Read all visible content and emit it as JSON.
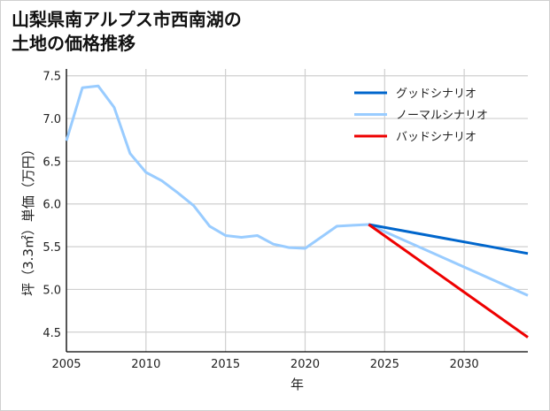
{
  "chart_data": {
    "type": "line",
    "title_lines": [
      "山梨県南アルプス市西南湖の",
      "土地の価格推移"
    ],
    "xlabel": "年",
    "ylabel": "坪（3.3㎡）単価（万円）",
    "xlim": [
      2005,
      2034
    ],
    "ylim": [
      4.27,
      7.58
    ],
    "xticks": [
      2005,
      2010,
      2015,
      2020,
      2025,
      2030
    ],
    "yticks": [
      4.5,
      5.0,
      5.5,
      6.0,
      6.5,
      7.0,
      7.5
    ],
    "ytick_labels": [
      "4.5",
      "5.0",
      "5.5",
      "6.0",
      "6.5",
      "7.0",
      "7.5"
    ],
    "grid": true,
    "legend_position": "top-right",
    "series": [
      {
        "name": "グッドシナリオ",
        "color": "#0066cc",
        "x": [
          2024,
          2034
        ],
        "y": [
          5.76,
          5.42
        ]
      },
      {
        "name": "ノーマルシナリオ",
        "color": "#99ccff",
        "x": [
          2005,
          2006,
          2007,
          2008,
          2009,
          2010,
          2011,
          2012,
          2013,
          2014,
          2015,
          2016,
          2017,
          2018,
          2019,
          2020,
          2021,
          2022,
          2023,
          2024,
          2034
        ],
        "y": [
          6.74,
          7.36,
          7.38,
          7.13,
          6.59,
          6.37,
          6.27,
          6.13,
          5.98,
          5.74,
          5.63,
          5.61,
          5.63,
          5.53,
          5.49,
          5.48,
          5.61,
          5.74,
          5.75,
          5.76,
          4.93
        ]
      },
      {
        "name": "バッドシナリオ",
        "color": "#ee0000",
        "x": [
          2024,
          2034
        ],
        "y": [
          5.76,
          4.44
        ]
      }
    ]
  }
}
